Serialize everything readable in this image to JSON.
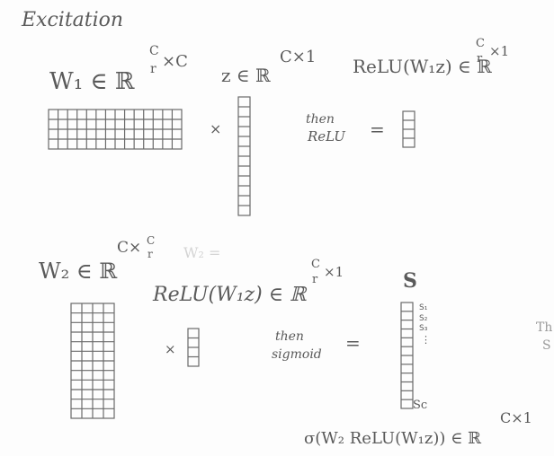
{
  "title": "Excitation",
  "section1": {
    "w1_label": "W₁ ∈ ℝ",
    "w1_exp_num": "C",
    "w1_exp_den": "r",
    "w1_exp_tail": "×C",
    "z_label": "z ∈ ℝ",
    "z_exp": "C×1",
    "relu_label": "ReLU(W₁z) ∈ ℝ",
    "relu_exp_num": "C",
    "relu_exp_den": "r",
    "relu_exp_tail": "×1",
    "times": "×",
    "then_line1": "then",
    "then_line2": "ReLU",
    "equals": "="
  },
  "section2": {
    "w2_label": "W₂ ∈ ℝ",
    "w2_exp": "C×",
    "w2_exp_num": "C",
    "w2_exp_den": "r",
    "ghost_text": "W₂ =",
    "relu_label": "ReLU(W₁z) ∈ ℝ",
    "relu_exp_num": "C",
    "relu_exp_den": "r",
    "relu_exp_tail": "×1",
    "s_label": "S",
    "times": "×",
    "then_line1": "then",
    "then_line2": "sigmoid",
    "equals": "=",
    "s_entries": [
      "S₁",
      "S₂",
      "S₃",
      "⋮"
    ],
    "s_last": "Sc",
    "formula": "σ(W₂ ReLU(W₁z)) ∈ ℝ",
    "formula_exp": "C×1",
    "cutoff_line1": "Th",
    "cutoff_line2": "S"
  },
  "colors": {
    "ink": "#5a5a5a",
    "grid": "#6a6a6a",
    "ghost": "#d4d4d4"
  }
}
